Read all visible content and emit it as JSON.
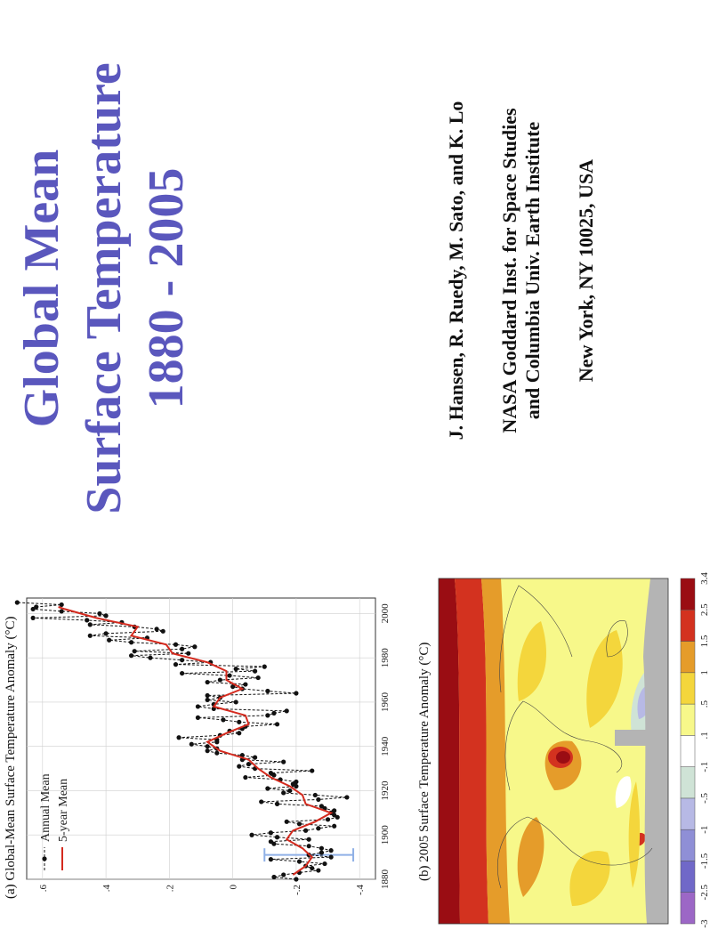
{
  "title": {
    "line1": "Global Mean",
    "line2": "Surface Temperature",
    "line3": "1880 - 2005"
  },
  "authors": {
    "names": "J. Hansen, R. Ruedy, M. Sato, and K. Lo",
    "affiliation1": "NASA Goddard Inst. for Space Studies",
    "affiliation2": "and Columbia Univ. Earth Institute",
    "location": "New York, NY 10025, USA"
  },
  "chart_data": [
    {
      "type": "line",
      "title": "(a)  Global-Mean Surface Temperature Anomaly (°C)",
      "xlabel": "",
      "ylabel": "",
      "xlim": [
        1880,
        2007
      ],
      "ylim": [
        -0.45,
        0.65
      ],
      "xticks": [
        "1880",
        "1900",
        "1920",
        "1940",
        "1960",
        "1980",
        "2000"
      ],
      "yticks": [
        ".6",
        ".4",
        ".2",
        "0",
        "-.2",
        "-.4"
      ],
      "grid": true,
      "legend": "top-left",
      "series": [
        {
          "name": "Annual Mean",
          "style": "dashed-with-points",
          "color": "#111111",
          "x": [
            1880,
            1881,
            1882,
            1883,
            1884,
            1885,
            1886,
            1887,
            1888,
            1889,
            1890,
            1891,
            1892,
            1893,
            1894,
            1895,
            1896,
            1897,
            1898,
            1899,
            1900,
            1901,
            1902,
            1903,
            1904,
            1905,
            1906,
            1907,
            1908,
            1909,
            1910,
            1911,
            1912,
            1913,
            1914,
            1915,
            1916,
            1917,
            1918,
            1919,
            1920,
            1921,
            1922,
            1923,
            1924,
            1925,
            1926,
            1927,
            1928,
            1929,
            1930,
            1931,
            1932,
            1933,
            1934,
            1935,
            1936,
            1937,
            1938,
            1939,
            1940,
            1941,
            1942,
            1943,
            1944,
            1945,
            1946,
            1947,
            1948,
            1949,
            1950,
            1951,
            1952,
            1953,
            1954,
            1955,
            1956,
            1957,
            1958,
            1959,
            1960,
            1961,
            1962,
            1963,
            1964,
            1965,
            1966,
            1967,
            1968,
            1969,
            1970,
            1971,
            1972,
            1973,
            1974,
            1975,
            1976,
            1977,
            1978,
            1979,
            1980,
            1981,
            1982,
            1983,
            1984,
            1985,
            1986,
            1987,
            1988,
            1989,
            1990,
            1991,
            1992,
            1993,
            1994,
            1995,
            1996,
            1997,
            1998,
            1999,
            2000,
            2001,
            2002,
            2003,
            2004,
            2005
          ],
          "y": [
            -0.2,
            -0.13,
            -0.16,
            -0.21,
            -0.27,
            -0.25,
            -0.23,
            -0.29,
            -0.21,
            -0.12,
            -0.31,
            -0.24,
            -0.28,
            -0.31,
            -0.28,
            -0.24,
            -0.13,
            -0.12,
            -0.24,
            -0.14,
            -0.06,
            -0.12,
            -0.23,
            -0.27,
            -0.32,
            -0.21,
            -0.17,
            -0.3,
            -0.33,
            -0.32,
            -0.31,
            -0.32,
            -0.29,
            -0.28,
            -0.14,
            -0.09,
            -0.27,
            -0.36,
            -0.26,
            -0.16,
            -0.18,
            -0.11,
            -0.2,
            -0.19,
            -0.2,
            -0.15,
            -0.04,
            -0.13,
            -0.12,
            -0.25,
            -0.07,
            -0.02,
            -0.05,
            -0.16,
            -0.03,
            -0.07,
            -0.03,
            0.05,
            0.08,
            0.05,
            0.08,
            0.13,
            0.05,
            0.05,
            0.17,
            0.04,
            -0.02,
            0.01,
            -0.03,
            -0.04,
            -0.14,
            -0.02,
            0.03,
            0.11,
            -0.11,
            -0.13,
            -0.17,
            0.06,
            0.11,
            0.06,
            -0.01,
            0.08,
            0.04,
            0.08,
            -0.2,
            -0.11,
            -0.03,
            0.0,
            -0.04,
            0.08,
            0.04,
            -0.08,
            0.01,
            0.16,
            -0.07,
            -0.01,
            -0.1,
            0.18,
            0.07,
            0.16,
            0.26,
            0.32,
            0.14,
            0.31,
            0.16,
            0.12,
            0.18,
            0.32,
            0.39,
            0.27,
            0.45,
            0.4,
            0.22,
            0.24,
            0.31,
            0.45,
            0.35,
            0.46,
            0.63,
            0.4,
            0.42,
            0.54,
            0.63,
            0.62,
            0.54,
            0.68
          ]
        },
        {
          "name": "5-year Mean",
          "style": "solid",
          "color": "#d42a1e",
          "x": [
            1882,
            1886,
            1890,
            1894,
            1898,
            1902,
            1906,
            1910,
            1914,
            1918,
            1922,
            1926,
            1930,
            1934,
            1938,
            1942,
            1946,
            1950,
            1954,
            1958,
            1962,
            1966,
            1970,
            1974,
            1978,
            1982,
            1986,
            1990,
            1994,
            1998,
            2002,
            2003
          ],
          "y": [
            -0.19,
            -0.23,
            -0.25,
            -0.22,
            -0.17,
            -0.19,
            -0.26,
            -0.31,
            -0.23,
            -0.22,
            -0.18,
            -0.12,
            -0.08,
            -0.05,
            0.04,
            0.08,
            0.02,
            -0.05,
            -0.04,
            0.06,
            0.04,
            -0.03,
            0.02,
            0.02,
            0.08,
            0.19,
            0.21,
            0.32,
            0.3,
            0.43,
            0.53,
            0.55
          ]
        }
      ]
    },
    {
      "type": "heatmap",
      "title": "(b) 2005 Surface Temperature Anomaly (°C)",
      "legend_levels": [
        "-3",
        "-2.5",
        "-1.5",
        "-1",
        "-.5",
        "-.1",
        ".1",
        ".5",
        "1",
        "1.5",
        "2.5",
        "3.4"
      ],
      "legend_colors": [
        "#9c67c6",
        "#7068c8",
        "#8f8fd6",
        "#b7b9e5",
        "#cfe3d6",
        "#ffffff",
        "#f7f88a",
        "#f4d63c",
        "#e59c2a",
        "#d3321f",
        "#9a0d13"
      ],
      "no_data_color": "#b4b4b4"
    }
  ]
}
